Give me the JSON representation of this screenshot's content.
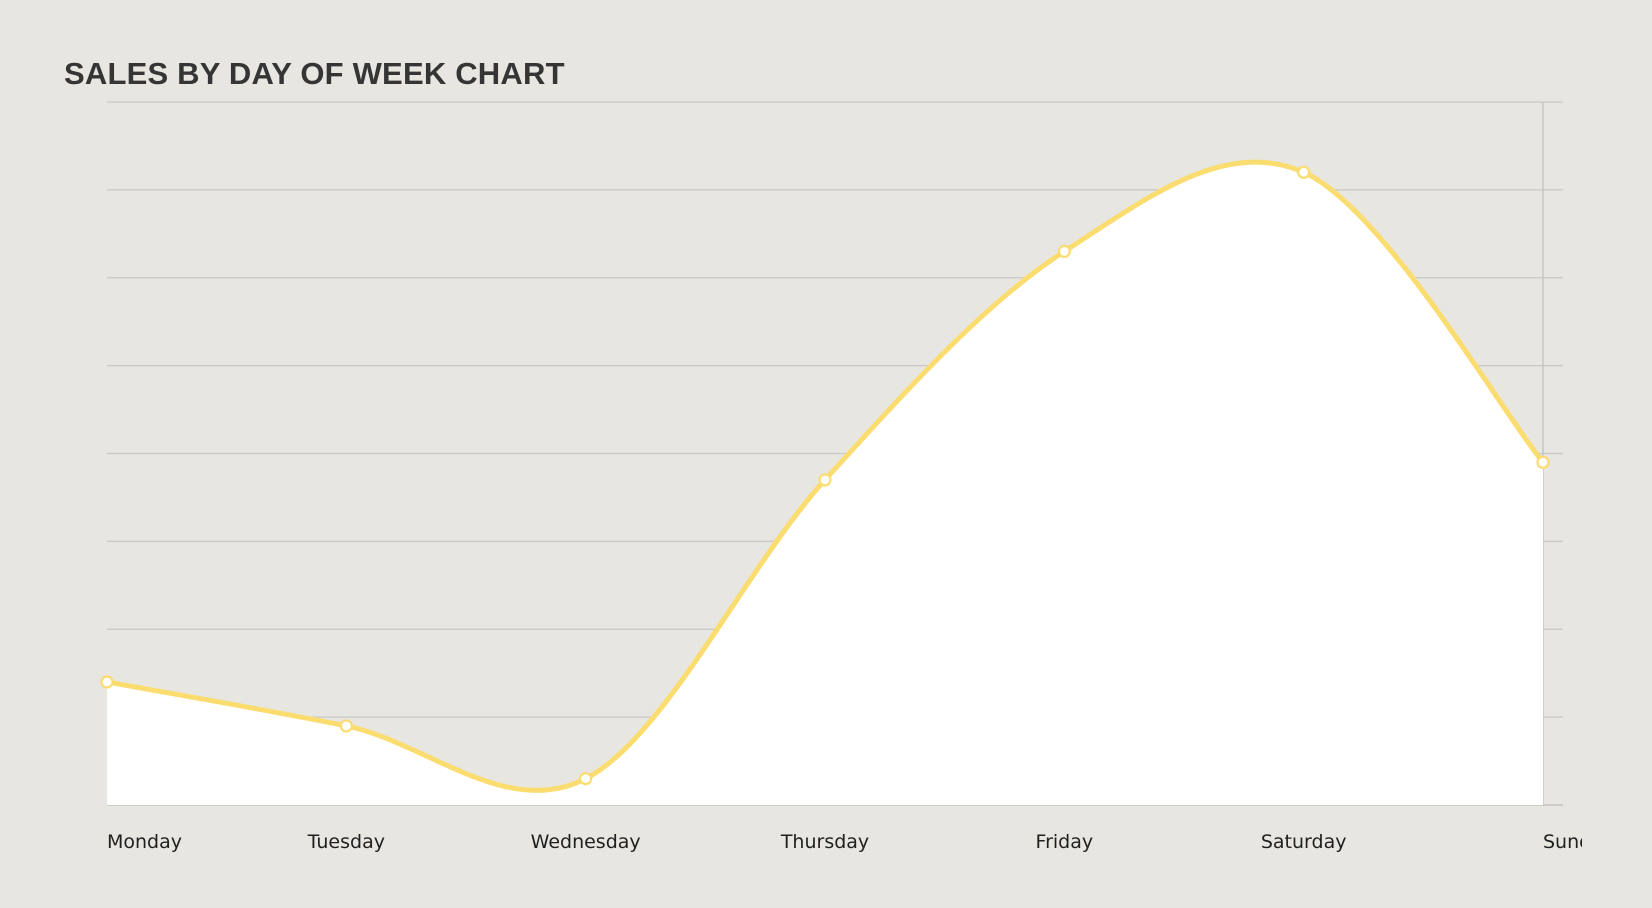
{
  "chart_data": {
    "type": "area",
    "title": "SALES BY DAY OF WEEK CHART",
    "categories": [
      "Monday",
      "Tuesday",
      "Wednesday",
      "Thursday",
      "Friday",
      "Saturday",
      "Sunday"
    ],
    "series": [
      {
        "values": [
          14,
          9,
          3,
          37,
          63,
          72,
          39
        ]
      }
    ],
    "ylim": [
      0,
      80
    ],
    "grid": true,
    "legend": "none",
    "line_color": "#fadc6f",
    "fill_color": "#ffffff",
    "background_color": "#e7e6e1",
    "grid_color": "#c9c8c3"
  }
}
